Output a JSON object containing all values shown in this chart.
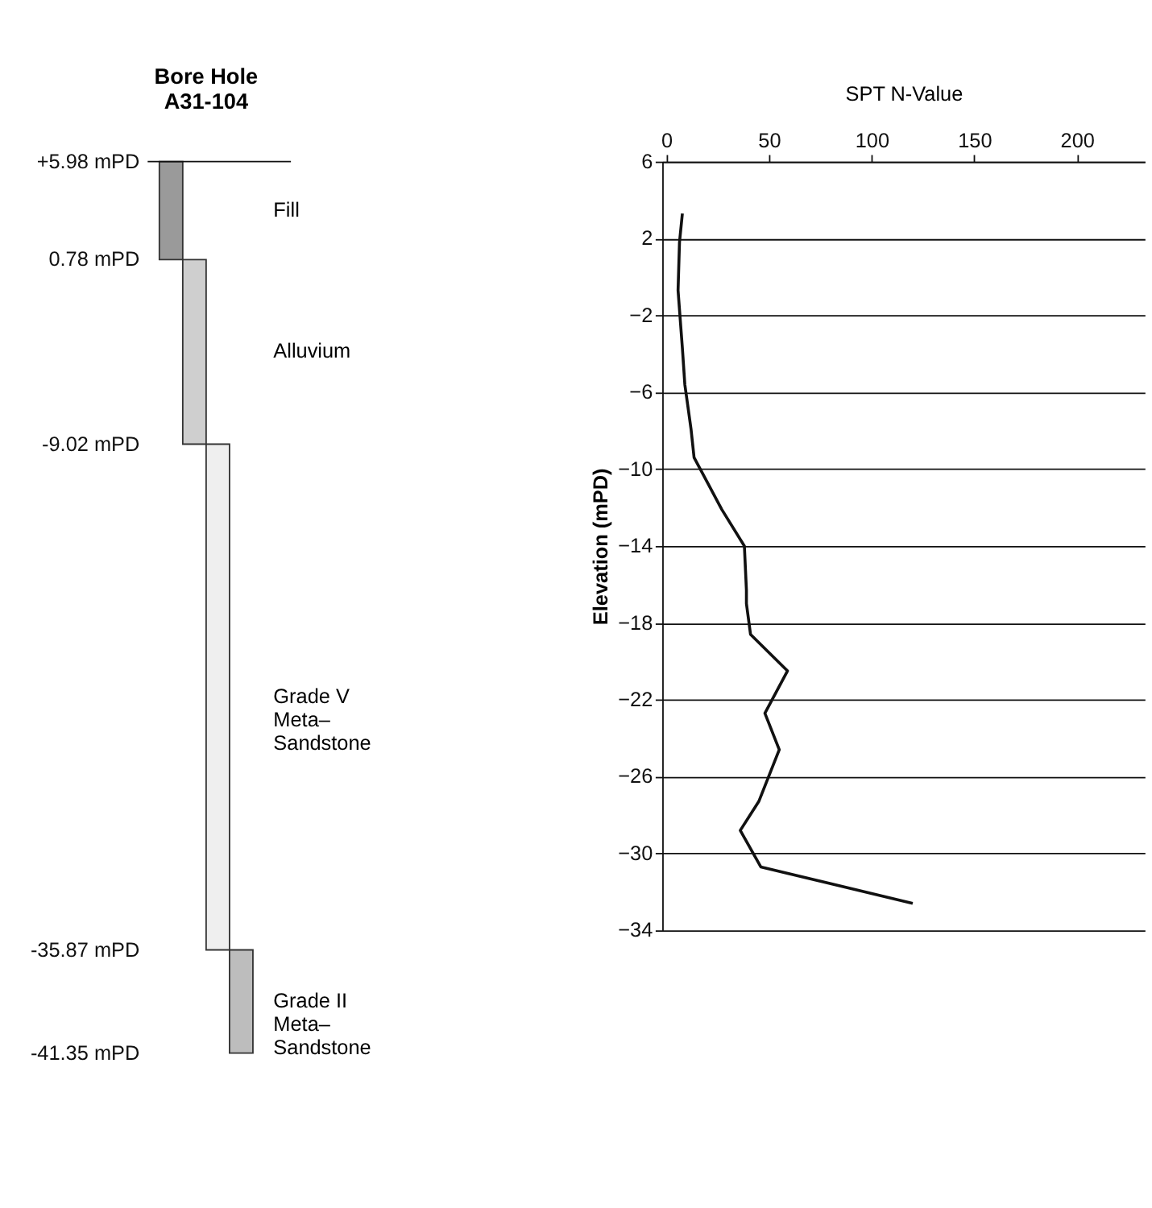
{
  "chart_data": [
    {
      "type": "bar",
      "title": "Bore Hole A31-104",
      "categories": [
        null,
        null,
        null,
        null
      ],
      "values": [
        5.2,
        9.8,
        26.85,
        5.48
      ],
      "base": [
        0.78,
        -9.02,
        -35.87,
        -41.35
      ],
      "colors": [
        "#9a9a9a",
        "#cfcfcf",
        "#efefef",
        "#bdbdbd"
      ],
      "annotations": [
        "Fill",
        "Alluvium",
        "Grade V\nMeta–\nSandstone",
        "Grade II\nMeta–\nSandstone"
      ],
      "ylim": [
        -41.35,
        5.98
      ],
      "yticks": [
        {
          "value": 5.98,
          "label": "+5.98 mPD"
        },
        {
          "value": 0.78,
          "label": "0.78 mPD"
        },
        {
          "value": -9.02,
          "label": "-9.02 mPD"
        },
        {
          "value": -35.87,
          "label": "-35.87 mPD"
        },
        {
          "value": -41.35,
          "label": "-41.35 mPD"
        }
      ],
      "ref_lines": [
        {
          "axis": "y",
          "value": 5.98
        }
      ],
      "grid": false
    },
    {
      "type": "line",
      "xlabel": "SPT N-Value",
      "ylabel": "Elevation (mPD)",
      "x": [
        7.8,
        6.4,
        5.7,
        7.8,
        9,
        12,
        13.5,
        20,
        27,
        38,
        39,
        39,
        41,
        59,
        48,
        55,
        45,
        36,
        46,
        120
      ],
      "values": [
        3.3,
        1.8,
        -0.7,
        -3.7,
        -5.6,
        -7.9,
        -9.4,
        -10.7,
        -12.1,
        -14,
        -16.3,
        -17,
        -18.6,
        -20.5,
        -22.7,
        -24.6,
        -27.3,
        -28.8,
        -30.7,
        -32.6
      ],
      "color": "#111111",
      "xlim": [
        -2,
        233
      ],
      "xticks": [
        0,
        50,
        100,
        150,
        200
      ],
      "ylim": [
        -34,
        6
      ],
      "yticks": [
        6,
        2,
        -2,
        -6,
        -10,
        -14,
        -18,
        -22,
        -26,
        -30,
        -34
      ],
      "grid": "y",
      "marker": "none",
      "line_style": "solid"
    }
  ]
}
